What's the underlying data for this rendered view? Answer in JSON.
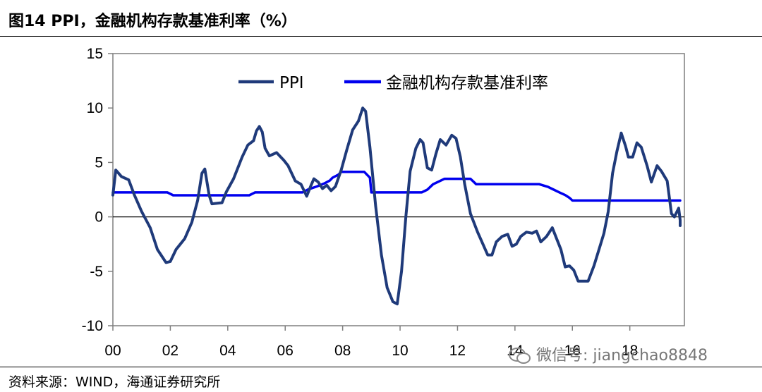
{
  "header": {
    "title": "图14 PPI，金融机构存款基准利率（%）"
  },
  "footer": {
    "source": "资料来源：WIND，海通证券研究所"
  },
  "watermark": {
    "text": "微信号: jiangchao8848"
  },
  "chart_data": {
    "type": "line",
    "title": "",
    "xlabel": "",
    "ylabel": "",
    "ylim": [
      -10,
      15
    ],
    "yticks": [
      -10,
      -5,
      0,
      5,
      10,
      15
    ],
    "xlim": [
      2000.0,
      2019.9
    ],
    "xticks": [
      {
        "x": 2000,
        "label": "00"
      },
      {
        "x": 2002,
        "label": "02"
      },
      {
        "x": 2004,
        "label": "04"
      },
      {
        "x": 2006,
        "label": "06"
      },
      {
        "x": 2008,
        "label": "08"
      },
      {
        "x": 2010,
        "label": "10"
      },
      {
        "x": 2012,
        "label": "12"
      },
      {
        "x": 2014,
        "label": "14"
      },
      {
        "x": 2016,
        "label": "16"
      },
      {
        "x": 2018,
        "label": "18"
      }
    ],
    "grid": false,
    "legend_position": "top",
    "series": [
      {
        "name": "PPI",
        "color": "#1f3a7a",
        "points": [
          [
            2000.0,
            2.0
          ],
          [
            2000.1,
            4.3
          ],
          [
            2000.3,
            3.7
          ],
          [
            2000.55,
            3.4
          ],
          [
            2000.75,
            2.0
          ],
          [
            2001.0,
            0.5
          ],
          [
            2001.3,
            -1.0
          ],
          [
            2001.55,
            -3.0
          ],
          [
            2001.85,
            -4.2
          ],
          [
            2002.0,
            -4.1
          ],
          [
            2002.2,
            -3.0
          ],
          [
            2002.5,
            -2.0
          ],
          [
            2002.75,
            -0.5
          ],
          [
            2002.95,
            1.5
          ],
          [
            2003.1,
            4.0
          ],
          [
            2003.2,
            4.4
          ],
          [
            2003.35,
            2.0
          ],
          [
            2003.45,
            1.2
          ],
          [
            2003.8,
            1.3
          ],
          [
            2003.95,
            2.3
          ],
          [
            2004.2,
            3.5
          ],
          [
            2004.5,
            5.5
          ],
          [
            2004.7,
            6.6
          ],
          [
            2004.9,
            7.0
          ],
          [
            2005.0,
            7.9
          ],
          [
            2005.1,
            8.3
          ],
          [
            2005.2,
            7.8
          ],
          [
            2005.3,
            6.3
          ],
          [
            2005.45,
            5.6
          ],
          [
            2005.7,
            5.9
          ],
          [
            2005.95,
            5.2
          ],
          [
            2006.1,
            4.7
          ],
          [
            2006.35,
            3.3
          ],
          [
            2006.55,
            3.0
          ],
          [
            2006.75,
            1.9
          ],
          [
            2006.9,
            2.9
          ],
          [
            2007.0,
            3.5
          ],
          [
            2007.15,
            3.2
          ],
          [
            2007.3,
            2.6
          ],
          [
            2007.45,
            2.9
          ],
          [
            2007.6,
            2.4
          ],
          [
            2007.75,
            2.8
          ],
          [
            2007.95,
            4.3
          ],
          [
            2008.15,
            6.2
          ],
          [
            2008.35,
            8.0
          ],
          [
            2008.55,
            8.8
          ],
          [
            2008.7,
            10.0
          ],
          [
            2008.8,
            9.7
          ],
          [
            2008.95,
            6.4
          ],
          [
            2009.15,
            1.0
          ],
          [
            2009.35,
            -3.5
          ],
          [
            2009.55,
            -6.5
          ],
          [
            2009.75,
            -7.8
          ],
          [
            2009.9,
            -8.0
          ],
          [
            2010.05,
            -5.0
          ],
          [
            2010.2,
            0.0
          ],
          [
            2010.35,
            4.2
          ],
          [
            2010.55,
            6.3
          ],
          [
            2010.7,
            7.1
          ],
          [
            2010.8,
            6.8
          ],
          [
            2010.95,
            4.5
          ],
          [
            2011.1,
            4.3
          ],
          [
            2011.25,
            5.8
          ],
          [
            2011.4,
            7.1
          ],
          [
            2011.6,
            6.6
          ],
          [
            2011.8,
            7.5
          ],
          [
            2011.95,
            7.2
          ],
          [
            2012.1,
            5.5
          ],
          [
            2012.25,
            3.0
          ],
          [
            2012.45,
            0.3
          ],
          [
            2012.7,
            -1.4
          ],
          [
            2012.9,
            -2.6
          ],
          [
            2013.05,
            -3.5
          ],
          [
            2013.2,
            -3.5
          ],
          [
            2013.35,
            -2.3
          ],
          [
            2013.55,
            -1.8
          ],
          [
            2013.75,
            -1.6
          ],
          [
            2013.9,
            -2.7
          ],
          [
            2014.05,
            -2.5
          ],
          [
            2014.2,
            -1.8
          ],
          [
            2014.4,
            -1.4
          ],
          [
            2014.6,
            -1.5
          ],
          [
            2014.75,
            -1.3
          ],
          [
            2014.9,
            -2.3
          ],
          [
            2015.1,
            -1.8
          ],
          [
            2015.3,
            -1.0
          ],
          [
            2015.45,
            -2.0
          ],
          [
            2015.6,
            -3.0
          ],
          [
            2015.75,
            -4.6
          ],
          [
            2015.9,
            -4.5
          ],
          [
            2016.05,
            -4.9
          ],
          [
            2016.2,
            -5.9
          ],
          [
            2016.4,
            -5.9
          ],
          [
            2016.55,
            -5.9
          ],
          [
            2016.75,
            -4.5
          ],
          [
            2016.95,
            -2.8
          ],
          [
            2017.1,
            -1.5
          ],
          [
            2017.25,
            0.5
          ],
          [
            2017.4,
            4.0
          ],
          [
            2017.55,
            6.0
          ],
          [
            2017.7,
            7.7
          ],
          [
            2017.85,
            6.5
          ],
          [
            2017.95,
            5.5
          ],
          [
            2018.1,
            5.5
          ],
          [
            2018.25,
            6.8
          ],
          [
            2018.4,
            6.4
          ],
          [
            2018.6,
            4.7
          ],
          [
            2018.75,
            3.2
          ],
          [
            2018.95,
            4.7
          ],
          [
            2019.1,
            4.2
          ],
          [
            2019.3,
            3.3
          ],
          [
            2019.45,
            0.3
          ],
          [
            2019.55,
            0.0
          ],
          [
            2019.7,
            0.8
          ],
          [
            2019.85,
            -0.3
          ],
          [
            2020.0,
            -0.8
          ]
        ]
      },
      {
        "name": "金融机构存款基准利率",
        "color": "#0000ee",
        "points": [
          [
            2000.0,
            2.25
          ],
          [
            2001.9,
            2.25
          ],
          [
            2002.1,
            1.98
          ],
          [
            2004.75,
            1.98
          ],
          [
            2004.95,
            2.25
          ],
          [
            2006.6,
            2.25
          ],
          [
            2006.8,
            2.52
          ],
          [
            2007.1,
            2.79
          ],
          [
            2007.35,
            3.06
          ],
          [
            2007.55,
            3.33
          ],
          [
            2007.65,
            3.6
          ],
          [
            2007.85,
            3.87
          ],
          [
            2007.95,
            4.14
          ],
          [
            2008.75,
            4.14
          ],
          [
            2008.85,
            3.87
          ],
          [
            2008.95,
            3.6
          ],
          [
            2009.0,
            2.25
          ],
          [
            2010.75,
            2.25
          ],
          [
            2010.95,
            2.5
          ],
          [
            2011.15,
            3.0
          ],
          [
            2011.35,
            3.25
          ],
          [
            2011.55,
            3.5
          ],
          [
            2012.45,
            3.5
          ],
          [
            2012.55,
            3.25
          ],
          [
            2012.65,
            3.0
          ],
          [
            2014.85,
            3.0
          ],
          [
            2015.15,
            2.75
          ],
          [
            2015.35,
            2.5
          ],
          [
            2015.55,
            2.25
          ],
          [
            2015.75,
            2.0
          ],
          [
            2015.9,
            1.75
          ],
          [
            2016.0,
            1.5
          ],
          [
            2020.1,
            1.5
          ]
        ]
      }
    ]
  }
}
